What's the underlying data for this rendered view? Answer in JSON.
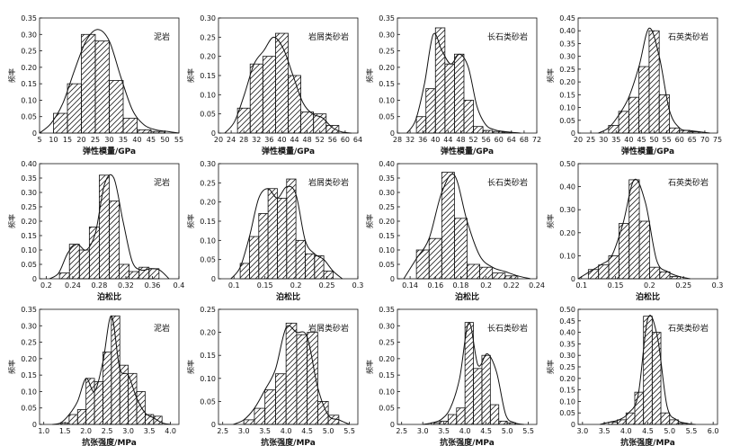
{
  "chart_data": [
    {
      "type": "bar",
      "title": "泥岩",
      "xlabel": "弹性模量/GPa",
      "ylabel": "频率",
      "xlim": [
        5,
        55
      ],
      "ylim": [
        0,
        0.35
      ],
      "xticks": [
        5,
        10,
        15,
        20,
        25,
        30,
        35,
        40,
        45,
        50,
        55
      ],
      "yticks": [
        0,
        0.05,
        0.1,
        0.15,
        0.2,
        0.25,
        0.3,
        0.35
      ],
      "ytick_labels": [
        "0",
        "0.05",
        "0.10",
        "0.15",
        "0.20",
        "0.25",
        "0.30",
        "0.35"
      ],
      "bin_edges": [
        10,
        15,
        20,
        25,
        30,
        35,
        40,
        45,
        50
      ],
      "values": [
        0.06,
        0.15,
        0.3,
        0.28,
        0.16,
        0.045,
        0.01,
        0.005
      ],
      "curve": [
        0,
        0.03,
        0.09,
        0.19,
        0.28,
        0.315,
        0.28,
        0.17,
        0.07,
        0.025,
        0.01,
        0.005,
        0
      ]
    },
    {
      "type": "bar",
      "title": "岩屑类砂岩",
      "xlabel": "弹性模量/GPa",
      "ylabel": "频率",
      "xlim": [
        20,
        64
      ],
      "ylim": [
        0,
        0.3
      ],
      "xticks": [
        20,
        24,
        28,
        32,
        36,
        40,
        44,
        48,
        52,
        56,
        60,
        64
      ],
      "yticks": [
        0,
        0.05,
        0.1,
        0.15,
        0.2,
        0.25,
        0.3
      ],
      "ytick_labels": [
        "0",
        "0.05",
        "0.10",
        "0.15",
        "0.20",
        "0.25",
        "0.30"
      ],
      "bin_edges": [
        26,
        30,
        34,
        38,
        42,
        46,
        50,
        54,
        58
      ],
      "values": [
        0.065,
        0.18,
        0.2,
        0.26,
        0.15,
        0.055,
        0.05,
        0.02
      ],
      "curve": [
        0,
        0.03,
        0.1,
        0.18,
        0.215,
        0.25,
        0.22,
        0.15,
        0.08,
        0.05,
        0.04,
        0.015,
        0.003,
        0
      ]
    },
    {
      "type": "bar",
      "title": "长石类砂岩",
      "xlabel": "弹性模量/GPa",
      "ylabel": "频率",
      "xlim": [
        28,
        72
      ],
      "ylim": [
        0,
        0.35
      ],
      "xticks": [
        28,
        32,
        36,
        40,
        44,
        48,
        52,
        56,
        60,
        64,
        68,
        72
      ],
      "yticks": [
        0,
        0.05,
        0.1,
        0.15,
        0.2,
        0.25,
        0.3,
        0.35
      ],
      "ytick_labels": [
        "0",
        "0.05",
        "0.10",
        "0.15",
        "0.20",
        "0.25",
        "0.30",
        "0.35"
      ],
      "bin_edges": [
        34,
        37,
        40,
        43,
        46,
        49,
        52,
        55,
        58,
        61,
        64
      ],
      "values": [
        0.05,
        0.135,
        0.32,
        0.21,
        0.24,
        0.1,
        0.02,
        0.008,
        0.005,
        0.003
      ],
      "curve": [
        0,
        0.04,
        0.15,
        0.3,
        0.25,
        0.21,
        0.24,
        0.2,
        0.08,
        0.025,
        0.01,
        0.005,
        0.002,
        0
      ]
    },
    {
      "type": "bar",
      "title": "石英类砂岩",
      "xlabel": "弹性模量/GPa",
      "ylabel": "频率",
      "xlim": [
        20,
        75
      ],
      "ylim": [
        0,
        0.45
      ],
      "xticks": [
        20,
        25,
        30,
        35,
        40,
        45,
        50,
        55,
        60,
        65,
        70,
        75
      ],
      "yticks": [
        0,
        0.05,
        0.1,
        0.15,
        0.2,
        0.25,
        0.3,
        0.35,
        0.4,
        0.45
      ],
      "ytick_labels": [
        "0",
        "0.05",
        "0.10",
        "0.15",
        "0.20",
        "0.25",
        "0.30",
        "0.35",
        "0.40",
        "0.45"
      ],
      "bin_edges": [
        32,
        36,
        40,
        44,
        48,
        52,
        56,
        60,
        64,
        68
      ],
      "values": [
        0.03,
        0.085,
        0.14,
        0.26,
        0.4,
        0.15,
        0.02,
        0.01,
        0.005
      ],
      "curve": [
        0,
        0.02,
        0.07,
        0.14,
        0.26,
        0.41,
        0.3,
        0.09,
        0.02,
        0.01,
        0.005,
        0
      ]
    },
    {
      "type": "bar",
      "title": "泥岩",
      "xlabel": "泊松比",
      "ylabel": "频率",
      "xlim": [
        0.19,
        0.4
      ],
      "ylim": [
        0,
        0.4
      ],
      "xticks": [
        0.2,
        0.24,
        0.28,
        0.32,
        0.36,
        0.4
      ],
      "yticks": [
        0,
        0.05,
        0.1,
        0.15,
        0.2,
        0.25,
        0.3,
        0.35,
        0.4
      ],
      "ytick_labels": [
        "0",
        "0.05",
        "0.10",
        "0.15",
        "0.20",
        "0.25",
        "0.30",
        "0.35",
        "0.40"
      ],
      "bin_edges": [
        0.22,
        0.235,
        0.25,
        0.265,
        0.28,
        0.295,
        0.31,
        0.325,
        0.34,
        0.355,
        0.37
      ],
      "values": [
        0.02,
        0.12,
        0.1,
        0.18,
        0.36,
        0.27,
        0.05,
        0.025,
        0.04,
        0.035
      ],
      "curve": [
        0,
        0.02,
        0.09,
        0.12,
        0.1,
        0.16,
        0.33,
        0.35,
        0.2,
        0.06,
        0.03,
        0.035,
        0.03,
        0
      ]
    },
    {
      "type": "bar",
      "title": "岩屑类砂岩",
      "xlabel": "泊松比",
      "ylabel": "频率",
      "xlim": [
        0.075,
        0.3
      ],
      "ylim": [
        0,
        0.3
      ],
      "xticks": [
        0.1,
        0.15,
        0.2,
        0.25,
        0.3
      ],
      "yticks": [
        0,
        0.05,
        0.1,
        0.15,
        0.2,
        0.25,
        0.3
      ],
      "ytick_labels": [
        "0",
        "0.05",
        "0.10",
        "0.15",
        "0.20",
        "0.25",
        "0.30"
      ],
      "bin_edges": [
        0.11,
        0.125,
        0.14,
        0.155,
        0.17,
        0.185,
        0.2,
        0.215,
        0.23,
        0.245,
        0.26
      ],
      "values": [
        0.04,
        0.11,
        0.17,
        0.235,
        0.21,
        0.26,
        0.1,
        0.065,
        0.06,
        0.02
      ],
      "curve": [
        0,
        0.03,
        0.11,
        0.21,
        0.235,
        0.21,
        0.24,
        0.22,
        0.1,
        0.065,
        0.05,
        0.02,
        0
      ]
    },
    {
      "type": "bar",
      "title": "长石类砂岩",
      "xlabel": "泊松比",
      "ylabel": "频率",
      "xlim": [
        0.13,
        0.24
      ],
      "ylim": [
        0,
        0.4
      ],
      "xticks": [
        0.14,
        0.16,
        0.18,
        0.2,
        0.22,
        0.24
      ],
      "yticks": [
        0,
        0.05,
        0.1,
        0.15,
        0.2,
        0.25,
        0.3,
        0.35,
        0.4
      ],
      "ytick_labels": [
        "0",
        "0.05",
        "0.10",
        "0.15",
        "0.20",
        "0.25",
        "0.30",
        "0.35",
        "0.40"
      ],
      "bin_edges": [
        0.145,
        0.155,
        0.165,
        0.175,
        0.185,
        0.195,
        0.205,
        0.215,
        0.225
      ],
      "values": [
        0.1,
        0.14,
        0.37,
        0.21,
        0.05,
        0.04,
        0.02,
        0.01
      ],
      "curve": [
        0,
        0.07,
        0.14,
        0.3,
        0.36,
        0.2,
        0.08,
        0.04,
        0.025,
        0.01,
        0
      ]
    },
    {
      "type": "bar",
      "title": "石英类砂岩",
      "xlabel": "泊松比",
      "ylabel": "频率",
      "xlim": [
        0.095,
        0.3
      ],
      "ylim": [
        0,
        0.5
      ],
      "xticks": [
        0.1,
        0.15,
        0.2,
        0.25,
        0.3
      ],
      "yticks": [
        0,
        0.1,
        0.2,
        0.3,
        0.4,
        0.5
      ],
      "ytick_labels": [
        "0",
        "0.10",
        "0.20",
        "0.30",
        "0.40",
        "0.50"
      ],
      "bin_edges": [
        0.11,
        0.125,
        0.14,
        0.155,
        0.17,
        0.185,
        0.2,
        0.215,
        0.23,
        0.245
      ],
      "values": [
        0.04,
        0.06,
        0.1,
        0.24,
        0.43,
        0.25,
        0.05,
        0.03,
        0.01
      ],
      "curve": [
        0,
        0.03,
        0.06,
        0.1,
        0.24,
        0.43,
        0.33,
        0.08,
        0.03,
        0.01,
        0
      ]
    },
    {
      "type": "bar",
      "title": "泥岩",
      "xlabel": "抗张强度/MPa",
      "ylabel": "频率",
      "xlim": [
        0.9,
        4.2
      ],
      "ylim": [
        0,
        0.35
      ],
      "xticks": [
        1.0,
        1.5,
        2.0,
        2.5,
        3.0,
        3.5,
        4.0
      ],
      "ytick_labels": [
        "0",
        "0.05",
        "0.10",
        "0.15",
        "0.20",
        "0.25",
        "0.30",
        "0.35"
      ],
      "yticks": [
        0,
        0.05,
        0.1,
        0.15,
        0.2,
        0.25,
        0.3,
        0.35
      ],
      "bin_edges": [
        1.4,
        1.6,
        1.8,
        2.0,
        2.2,
        2.4,
        2.6,
        2.8,
        3.0,
        3.2,
        3.4,
        3.6,
        3.8
      ],
      "values": [
        0.005,
        0.03,
        0.045,
        0.14,
        0.13,
        0.22,
        0.33,
        0.18,
        0.155,
        0.1,
        0.03,
        0.025
      ],
      "curve": [
        0,
        0.005,
        0.03,
        0.07,
        0.14,
        0.1,
        0.19,
        0.33,
        0.17,
        0.15,
        0.08,
        0.035,
        0.02,
        0.005,
        0
      ]
    },
    {
      "type": "bar",
      "title": "岩屑类砂岩",
      "xlabel": "抗张强度/MPa",
      "ylabel": "频率",
      "xlim": [
        2.4,
        5.7
      ],
      "ylim": [
        0,
        0.25
      ],
      "xticks": [
        2.5,
        3.0,
        3.5,
        4.0,
        4.5,
        5.0,
        5.5
      ],
      "yticks": [
        0,
        0.05,
        0.1,
        0.15,
        0.2,
        0.25
      ],
      "ytick_labels": [
        "0",
        "0.05",
        "0.10",
        "0.15",
        "0.20",
        "0.25"
      ],
      "bin_edges": [
        3.0,
        3.25,
        3.5,
        3.75,
        4.0,
        4.25,
        4.5,
        4.75,
        5.0,
        5.25
      ],
      "values": [
        0.01,
        0.035,
        0.075,
        0.11,
        0.22,
        0.195,
        0.2,
        0.05,
        0.02
      ],
      "curve": [
        0,
        0.01,
        0.035,
        0.075,
        0.12,
        0.21,
        0.2,
        0.19,
        0.08,
        0.02,
        0.01,
        0
      ]
    },
    {
      "type": "bar",
      "title": "长石类砂岩",
      "xlabel": "抗张强度/MPa",
      "ylabel": "频率",
      "xlim": [
        2.4,
        5.7
      ],
      "ylim": [
        0,
        0.35
      ],
      "xticks": [
        2.5,
        3.0,
        3.5,
        4.0,
        4.5,
        5.0,
        5.5
      ],
      "yticks": [
        0,
        0.05,
        0.1,
        0.15,
        0.2,
        0.25,
        0.3,
        0.35
      ],
      "ytick_labels": [
        "0",
        "0.05",
        "0.10",
        "0.15",
        "0.20",
        "0.25",
        "0.30",
        "0.35"
      ],
      "bin_edges": [
        3.2,
        3.4,
        3.6,
        3.8,
        4.0,
        4.2,
        4.4,
        4.6,
        4.8,
        5.0,
        5.2
      ],
      "values": [
        0.005,
        0.01,
        0.03,
        0.05,
        0.31,
        0.17,
        0.21,
        0.06,
        0.01,
        0.005
      ],
      "curve": [
        0,
        0.005,
        0.015,
        0.05,
        0.14,
        0.31,
        0.18,
        0.215,
        0.16,
        0.03,
        0.005,
        0
      ]
    },
    {
      "type": "bar",
      "title": "石英类砂岩",
      "xlabel": "抗张强度/MPa",
      "ylabel": "频率",
      "xlim": [
        2.9,
        6.1
      ],
      "ylim": [
        0,
        0.5
      ],
      "xticks": [
        3.0,
        3.5,
        4.0,
        4.5,
        5.0,
        5.5,
        6.0
      ],
      "yticks": [
        0,
        0.05,
        0.1,
        0.15,
        0.2,
        0.25,
        0.3,
        0.35,
        0.4,
        0.45,
        0.5
      ],
      "ytick_labels": [
        "0",
        "0.05",
        "0.10",
        "0.15",
        "0.20",
        "0.25",
        "0.30",
        "0.35",
        "0.40",
        "0.45",
        "0.50"
      ],
      "bin_edges": [
        3.6,
        3.8,
        4.0,
        4.2,
        4.4,
        4.6,
        4.8,
        5.0,
        5.2,
        5.4
      ],
      "values": [
        0.01,
        0.02,
        0.05,
        0.14,
        0.47,
        0.4,
        0.05,
        0.02,
        0.005
      ],
      "curve": [
        0,
        0.01,
        0.02,
        0.05,
        0.13,
        0.46,
        0.38,
        0.08,
        0.02,
        0.005,
        0
      ]
    }
  ]
}
